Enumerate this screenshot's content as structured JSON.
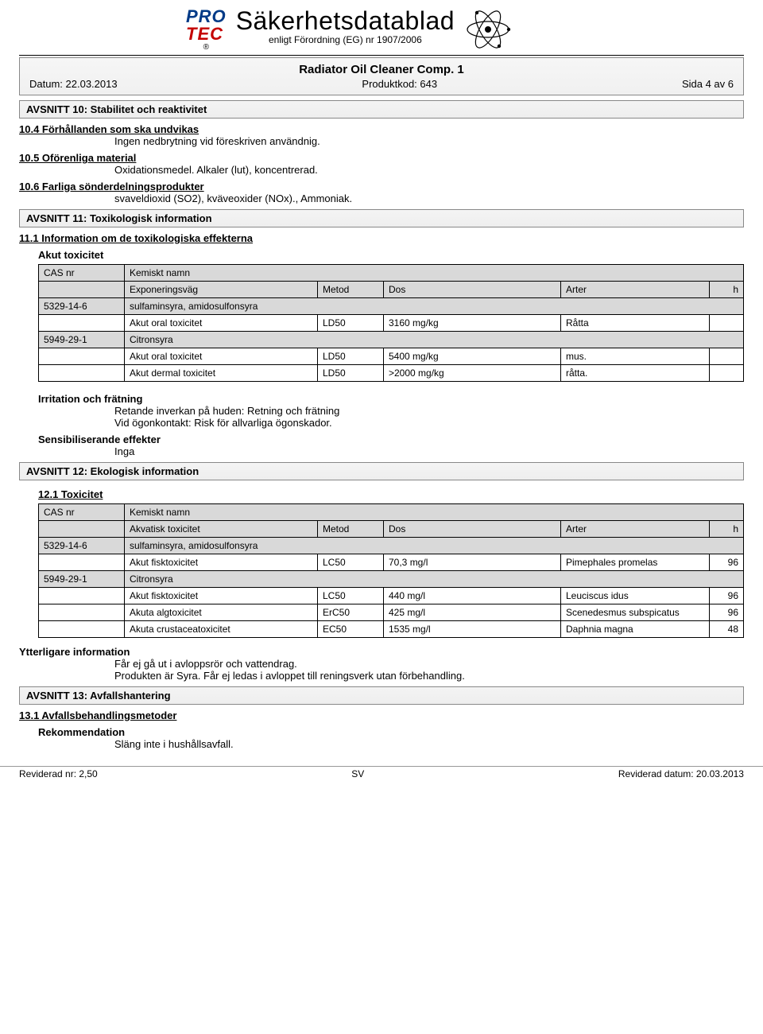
{
  "logo": {
    "line1": "PRO",
    "line2": "TEC",
    "reg": "®"
  },
  "header": {
    "title": "Säkerhetsdatablad",
    "subtitle": "enligt Förordning (EG) nr 1907/2006"
  },
  "doc": {
    "title": "Radiator Oil Cleaner Comp. 1",
    "date_label": "Datum: 22.03.2013",
    "product_code": "Produktkod: 643",
    "page": "Sida 4 av 6"
  },
  "s10": {
    "heading": "AVSNITT 10: Stabilitet och reaktivitet",
    "s104_h": "10.4 Förhållanden som ska undvikas",
    "s104_t": "Ingen nedbrytning vid föreskriven användnig.",
    "s105_h": "10.5 Oförenliga material",
    "s105_t": "Oxidationsmedel. Alkaler (lut), koncentrerad.",
    "s106_h": "10.6 Farliga sönderdelningsprodukter",
    "s106_t": "svaveldioxid (SO2), kväveoxider (NOx)., Ammoniak."
  },
  "s11": {
    "heading": "AVSNITT 11: Toxikologisk information",
    "s111_h": "11.1 Information om de toxikologiska effekterna",
    "akut_h": "Akut toxicitet",
    "table_header": {
      "cas": "CAS nr",
      "name": "Kemiskt namn",
      "route": "Exponeringsväg",
      "method": "Metod",
      "dose": "Dos",
      "species": "Arter",
      "h": "h"
    },
    "rows": [
      {
        "type": "sub",
        "cas": "5329-14-6",
        "name": "sulfaminsyra, amidosulfonsyra"
      },
      {
        "type": "data",
        "route": "Akut oral toxicitet",
        "method": "LD50",
        "dose": "3160 mg/kg",
        "species": "Råtta",
        "h": ""
      },
      {
        "type": "sub",
        "cas": "5949-29-1",
        "name": "Citronsyra"
      },
      {
        "type": "data",
        "route": "Akut oral toxicitet",
        "method": "LD50",
        "dose": "5400 mg/kg",
        "species": "mus.",
        "h": ""
      },
      {
        "type": "data",
        "route": "Akut dermal toxicitet",
        "method": "LD50",
        "dose": ">2000 mg/kg",
        "species": "råtta.",
        "h": ""
      }
    ],
    "irr_h": "Irritation och frätning",
    "irr_t1": "Retande inverkan på huden: Retning och frätning",
    "irr_t2": "Vid ögonkontakt: Risk för allvarliga ögonskador.",
    "sens_h": "Sensibiliserande effekter",
    "sens_t": "Inga"
  },
  "s12": {
    "heading": "AVSNITT 12: Ekologisk information",
    "s121_h": "12.1 Toxicitet",
    "table_header": {
      "cas": "CAS nr",
      "name": "Kemiskt namn",
      "route": "Akvatisk toxicitet",
      "method": "Metod",
      "dose": "Dos",
      "species": "Arter",
      "h": "h"
    },
    "rows": [
      {
        "type": "sub",
        "cas": "5329-14-6",
        "name": "sulfaminsyra, amidosulfonsyra"
      },
      {
        "type": "data",
        "route": "Akut fisktoxicitet",
        "method": "LC50",
        "dose": "70,3 mg/l",
        "species": "Pimephales promelas",
        "h": "96"
      },
      {
        "type": "sub",
        "cas": "5949-29-1",
        "name": "Citronsyra"
      },
      {
        "type": "data",
        "route": "Akut fisktoxicitet",
        "method": "LC50",
        "dose": "440 mg/l",
        "species": "Leuciscus idus",
        "h": "96"
      },
      {
        "type": "data",
        "route": "Akuta algtoxicitet",
        "method": "ErC50",
        "dose": "425 mg/l",
        "species": "Scenedesmus subspicatus",
        "h": "96"
      },
      {
        "type": "data",
        "route": "Akuta crustaceatoxicitet",
        "method": "EC50",
        "dose": "1535 mg/l",
        "species": "Daphnia magna",
        "h": "48"
      }
    ],
    "more_h": "Ytterligare information",
    "more_t1": "Får ej gå ut i avloppsrör och vattendrag.",
    "more_t2": "Produkten är Syra. Får ej ledas i avloppet till reningsverk utan förbehandling."
  },
  "s13": {
    "heading": "AVSNITT 13: Avfallshantering",
    "s131_h": "13.1 Avfallsbehandlingsmetoder",
    "rec_h": "Rekommendation",
    "rec_t": "Släng inte i hushållsavfall."
  },
  "footer": {
    "left": "Reviderad nr: 2,50",
    "center": "SV",
    "right": "Reviderad datum: 20.03.2013"
  }
}
